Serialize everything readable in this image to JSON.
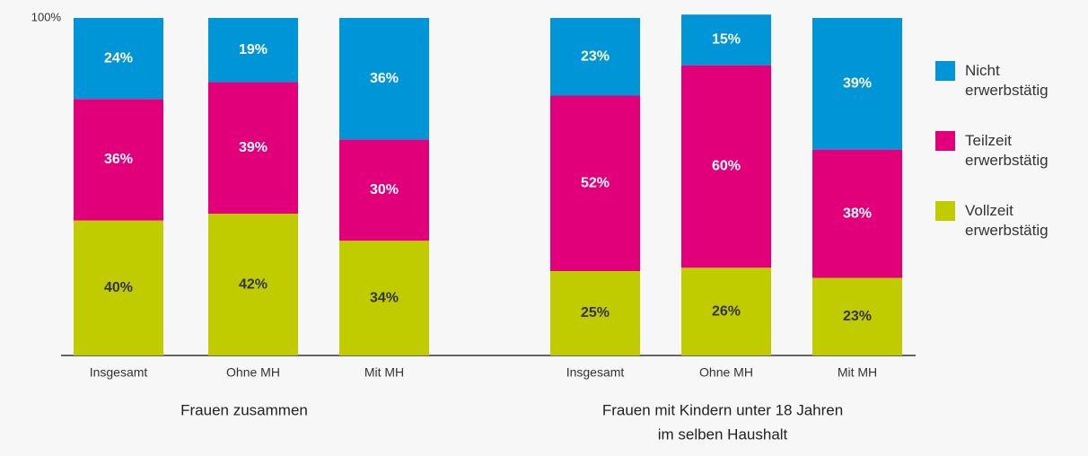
{
  "chart_data": {
    "type": "stacked_bar",
    "categories": [
      "Insgesamt",
      "Ohne MH",
      "Mit MH",
      "Insgesamt",
      "Ohne MH",
      "Mit MH"
    ],
    "groups": [
      [
        "Frauen zusammen"
      ],
      [
        "Frauen mit Kindern unter 18 Jahren",
        "im selben Haushalt"
      ]
    ],
    "series": [
      {
        "name": "Nicht erwerbstätig",
        "color": "#0095d6",
        "values": [
          24,
          19,
          36,
          23,
          15,
          39
        ],
        "value_labels": [
          "24%",
          "19%",
          "36%",
          "23%",
          "15%",
          "39%"
        ]
      },
      {
        "name": "Teilzeit erwerbstätig",
        "color": "#e2007a",
        "values": [
          36,
          39,
          30,
          52,
          60,
          38
        ],
        "value_labels": [
          "36%",
          "39%",
          "30%",
          "52%",
          "60%",
          "38%"
        ]
      },
      {
        "name": "Vollzeit erwerbstätig",
        "color": "#c0cc00",
        "values": [
          40,
          42,
          34,
          25,
          26,
          23
        ],
        "value_labels": [
          "40%",
          "42%",
          "34%",
          "25%",
          "26%",
          "23%"
        ]
      }
    ],
    "ylim": [
      0,
      100
    ],
    "yticks": [
      {
        "value": 100,
        "label": "100%"
      }
    ]
  }
}
